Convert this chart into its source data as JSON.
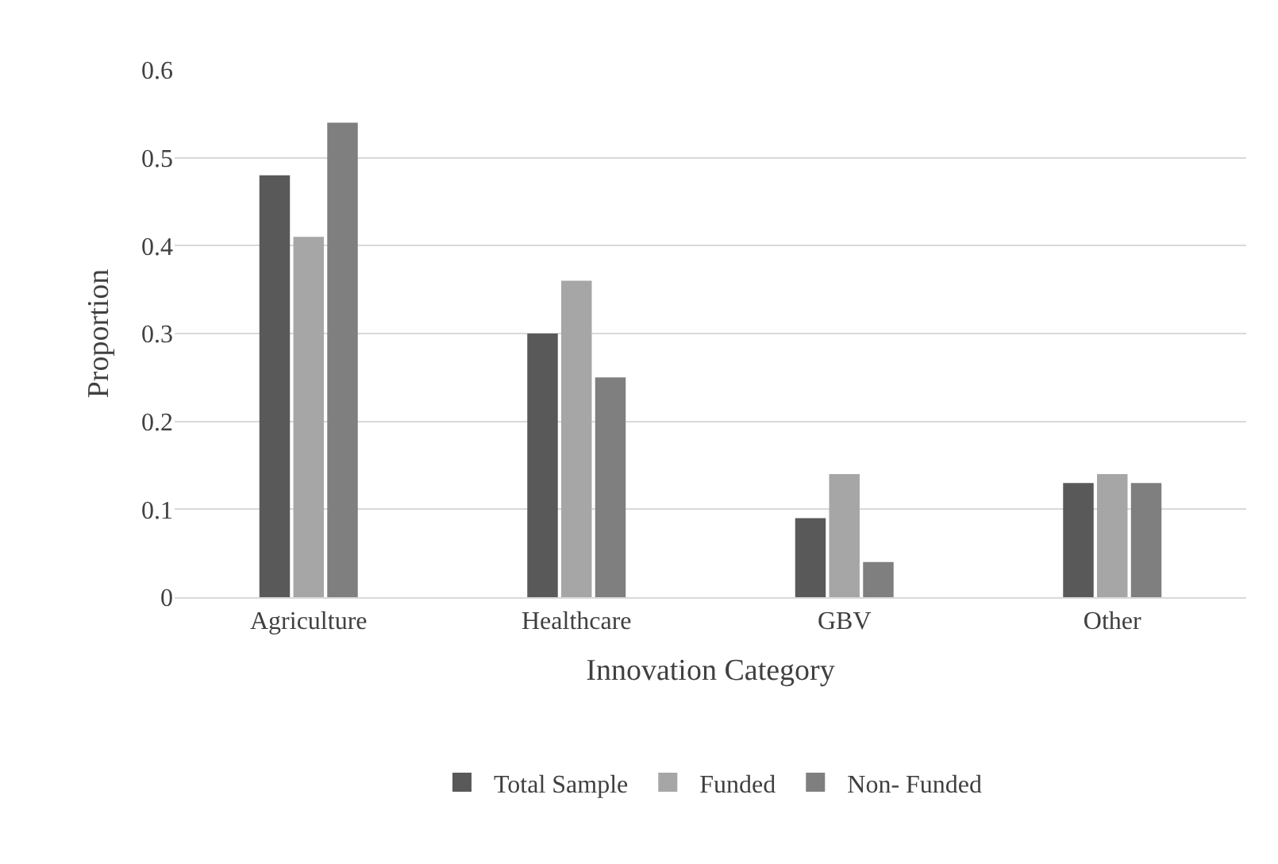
{
  "chart_data": {
    "type": "bar",
    "xlabel": "Innovation Category",
    "ylabel": "Proportion",
    "categories": [
      "Agriculture",
      "Healthcare",
      "GBV",
      "Other"
    ],
    "series": [
      {
        "name": "Total Sample",
        "color": "#595959",
        "values": [
          0.48,
          0.3,
          0.09,
          0.13
        ]
      },
      {
        "name": "Funded",
        "color": "#a6a6a6",
        "values": [
          0.41,
          0.36,
          0.14,
          0.14
        ]
      },
      {
        "name": "Non- Funded",
        "color": "#7f7f7f",
        "values": [
          0.54,
          0.25,
          0.04,
          0.13
        ]
      }
    ],
    "ylim": [
      0,
      0.6
    ],
    "yticks": [
      0,
      0.1,
      0.2,
      0.3,
      0.4,
      0.5,
      0.6
    ],
    "grid": "y",
    "legend": "bottom"
  }
}
